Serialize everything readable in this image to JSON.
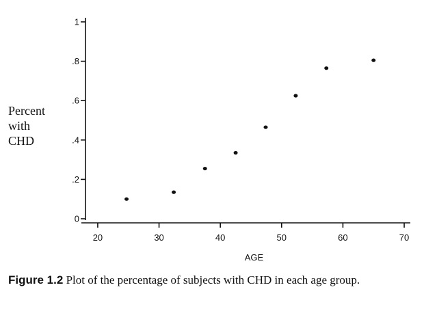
{
  "chart_data": {
    "type": "scatter",
    "xlabel": "AGE",
    "ylabel_lines": [
      "Percent",
      "with",
      "CHD"
    ],
    "x": [
      24.7,
      32.4,
      37.5,
      42.5,
      47.4,
      52.3,
      57.3,
      65.0
    ],
    "y": [
      0.1,
      0.135,
      0.255,
      0.335,
      0.465,
      0.625,
      0.765,
      0.805
    ],
    "xlim": [
      18,
      71
    ],
    "ylim": [
      0,
      1
    ],
    "xticks": [
      20,
      30,
      40,
      50,
      60,
      70
    ],
    "xtick_labels": [
      "20",
      "30",
      "40",
      "50",
      "60",
      "70"
    ],
    "yticks": [
      0,
      0.2,
      0.4,
      0.6,
      0.8,
      1
    ],
    "ytick_labels": [
      "0",
      ".2",
      ".4",
      ".6",
      ".8",
      "1"
    ],
    "grid": false,
    "color": "#111111"
  },
  "caption": {
    "figure_label": "Figure 1.2",
    "text": "Plot of the percentage of subjects with CHD in each age group."
  }
}
